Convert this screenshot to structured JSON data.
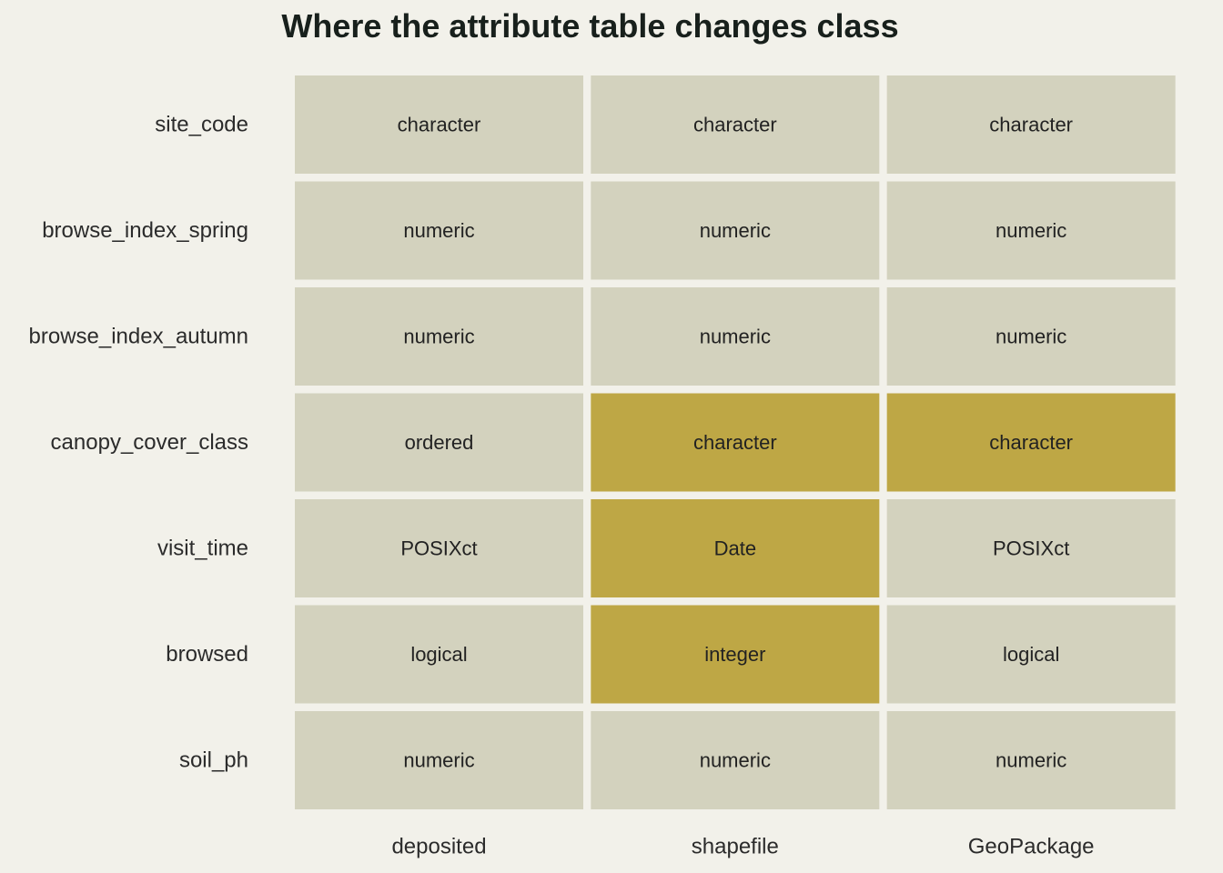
{
  "chart_data": {
    "type": "heatmap",
    "title": "Where the attribute table changes class",
    "columns": [
      "deposited",
      "shapefile",
      "GeoPackage"
    ],
    "rows": [
      "site_code",
      "browse_index_spring",
      "browse_index_autumn",
      "canopy_cover_class",
      "visit_time",
      "browsed",
      "soil_ph"
    ],
    "cells": [
      [
        {
          "value": "character",
          "changed": false
        },
        {
          "value": "character",
          "changed": false
        },
        {
          "value": "character",
          "changed": false
        }
      ],
      [
        {
          "value": "numeric",
          "changed": false
        },
        {
          "value": "numeric",
          "changed": false
        },
        {
          "value": "numeric",
          "changed": false
        }
      ],
      [
        {
          "value": "numeric",
          "changed": false
        },
        {
          "value": "numeric",
          "changed": false
        },
        {
          "value": "numeric",
          "changed": false
        }
      ],
      [
        {
          "value": "ordered",
          "changed": false
        },
        {
          "value": "character",
          "changed": true
        },
        {
          "value": "character",
          "changed": true
        }
      ],
      [
        {
          "value": "POSIXct",
          "changed": false
        },
        {
          "value": "Date",
          "changed": true
        },
        {
          "value": "POSIXct",
          "changed": false
        }
      ],
      [
        {
          "value": "logical",
          "changed": false
        },
        {
          "value": "integer",
          "changed": true
        },
        {
          "value": "logical",
          "changed": false
        }
      ],
      [
        {
          "value": "numeric",
          "changed": false
        },
        {
          "value": "numeric",
          "changed": false
        },
        {
          "value": "numeric",
          "changed": false
        }
      ]
    ],
    "colors": {
      "background": "#f2f1ea",
      "unchanged": "#d3d2be",
      "changed": "#bea745",
      "title": "#18201c",
      "text": "#222222"
    },
    "legend": "none",
    "grid": false
  }
}
